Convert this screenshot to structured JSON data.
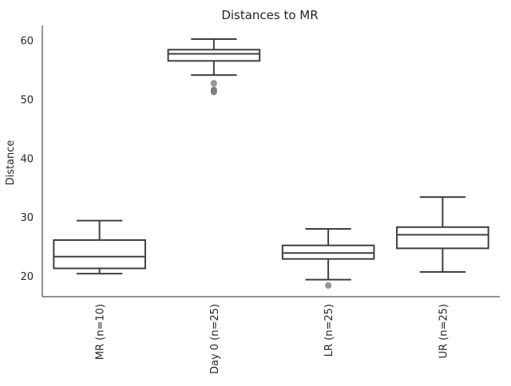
{
  "chart_data": {
    "type": "box",
    "title": "Distances to MR",
    "xlabel": "",
    "ylabel": "Distance",
    "ylim": [
      16.5,
      62.5
    ],
    "yticks": [
      20,
      30,
      40,
      50,
      60
    ],
    "grid": false,
    "categories": [
      "MR (n=10)",
      "Day 0 (n=25)",
      "LR (n=25)",
      "UR (n=25)"
    ],
    "boxes": [
      {
        "category": "MR (n=10)",
        "whisker_low": 20.4,
        "q1": 21.3,
        "median": 23.3,
        "q3": 26.1,
        "whisker_high": 29.4,
        "outliers": []
      },
      {
        "category": "Day 0 (n=25)",
        "whisker_low": 54.1,
        "q1": 56.5,
        "median": 57.7,
        "q3": 58.4,
        "whisker_high": 60.2,
        "outliers": [
          52.7,
          51.6,
          51.4,
          51.2
        ]
      },
      {
        "category": "LR (n=25)",
        "whisker_low": 19.4,
        "q1": 22.9,
        "median": 23.9,
        "q3": 25.2,
        "whisker_high": 28.0,
        "outliers": [
          18.4
        ]
      },
      {
        "category": "UR (n=25)",
        "whisker_low": 20.7,
        "q1": 24.7,
        "median": 27.0,
        "q3": 28.3,
        "whisker_high": 33.4,
        "outliers": []
      }
    ],
    "colors": {
      "line": "#3f3f3f",
      "box_fill": "#ffffff",
      "outlier": "#808080",
      "axis": "#262626"
    }
  }
}
